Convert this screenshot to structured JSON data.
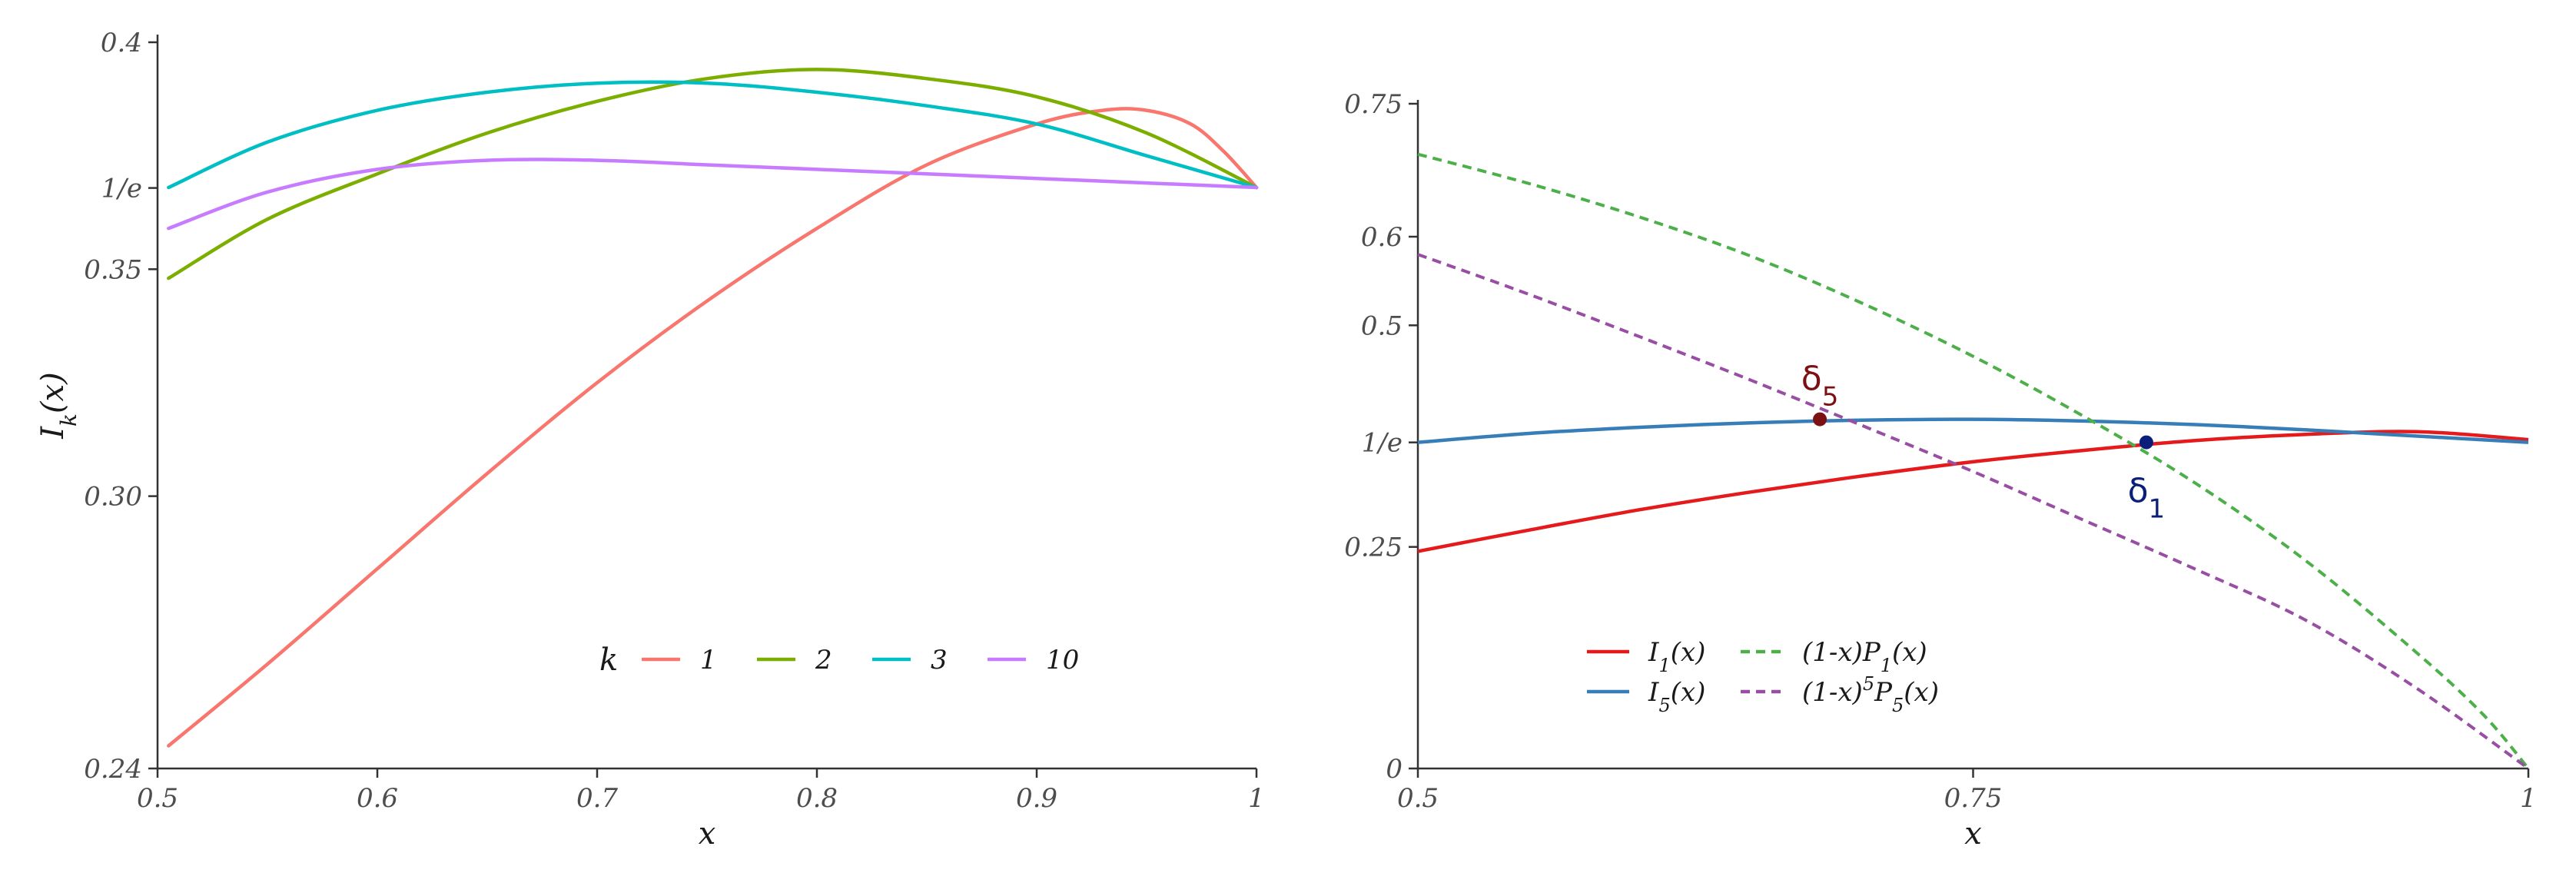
{
  "chart_data": [
    {
      "type": "line",
      "xlabel": "x",
      "ylabel": "I",
      "ylabel_sub": "k",
      "ylabel_suffix": "(x)",
      "xlim": [
        0.5,
        1.0
      ],
      "ylim": [
        0.24,
        0.4
      ],
      "x_ticks": [
        {
          "v": 0.5,
          "label": "0.5"
        },
        {
          "v": 0.6,
          "label": "0.6"
        },
        {
          "v": 0.7,
          "label": "0.7"
        },
        {
          "v": 0.8,
          "label": "0.8"
        },
        {
          "v": 0.9,
          "label": "0.9"
        },
        {
          "v": 1.0,
          "label": "1"
        }
      ],
      "y_ticks": [
        {
          "v": 0.24,
          "label": "0.24"
        },
        {
          "v": 0.3,
          "label": "0.30"
        },
        {
          "v": 0.35,
          "label": "0.35"
        },
        {
          "v": 0.3679,
          "label": "1/e"
        },
        {
          "v": 0.4,
          "label": "0.4"
        }
      ],
      "legend": {
        "title": "k",
        "placement": "bottom-center"
      },
      "series": [
        {
          "name": "1",
          "color": "#F8766D",
          "x": [
            0.505,
            0.55,
            0.6,
            0.65,
            0.7,
            0.75,
            0.8,
            0.85,
            0.9,
            0.93,
            0.95,
            0.97,
            0.985,
            1.0
          ],
          "y": [
            0.245,
            0.263,
            0.284,
            0.305,
            0.325,
            0.343,
            0.359,
            0.373,
            0.382,
            0.385,
            0.385,
            0.382,
            0.376,
            0.368
          ]
        },
        {
          "name": "2",
          "color": "#7CAE00",
          "x": [
            0.505,
            0.55,
            0.6,
            0.65,
            0.7,
            0.75,
            0.8,
            0.85,
            0.9,
            0.95,
            1.0
          ],
          "y": [
            0.348,
            0.361,
            0.371,
            0.38,
            0.387,
            0.392,
            0.394,
            0.392,
            0.388,
            0.38,
            0.368
          ]
        },
        {
          "name": "3",
          "color": "#00BFC4",
          "x": [
            0.505,
            0.55,
            0.6,
            0.65,
            0.7,
            0.75,
            0.8,
            0.85,
            0.9,
            0.95,
            1.0
          ],
          "y": [
            0.368,
            0.378,
            0.385,
            0.389,
            0.391,
            0.391,
            0.389,
            0.386,
            0.382,
            0.375,
            0.368
          ]
        },
        {
          "name": "10",
          "color": "#C77CFF",
          "x": [
            0.505,
            0.55,
            0.6,
            0.65,
            0.7,
            0.75,
            0.8,
            0.85,
            0.9,
            0.95,
            1.0
          ],
          "y": [
            0.359,
            0.367,
            0.372,
            0.374,
            0.374,
            0.373,
            0.372,
            0.371,
            0.37,
            0.369,
            0.368
          ]
        }
      ]
    },
    {
      "type": "line",
      "xlabel": "x",
      "xlim": [
        0.5,
        1.0
      ],
      "ylim": [
        0.0,
        0.75
      ],
      "x_ticks": [
        {
          "v": 0.5,
          "label": "0.5"
        },
        {
          "v": 0.75,
          "label": "0.75"
        },
        {
          "v": 1.0,
          "label": "1"
        }
      ],
      "y_ticks": [
        {
          "v": 0.0,
          "label": "0"
        },
        {
          "v": 0.25,
          "label": "0.25"
        },
        {
          "v": 0.3679,
          "label": "1/e"
        },
        {
          "v": 0.5,
          "label": "0.5"
        },
        {
          "v": 0.6,
          "label": "0.6"
        },
        {
          "v": 0.75,
          "label": "0.75"
        }
      ],
      "legend": {
        "placement": "bottom-left"
      },
      "series": [
        {
          "name": "I",
          "sub": "1",
          "suffix": "(x)",
          "color": "#E41A1C",
          "dash": false,
          "x": [
            0.5,
            0.55,
            0.6,
            0.65,
            0.7,
            0.75,
            0.8,
            0.85,
            0.9,
            0.95,
            1.0
          ],
          "y": [
            0.245,
            0.269,
            0.292,
            0.312,
            0.33,
            0.346,
            0.359,
            0.37,
            0.377,
            0.38,
            0.371
          ]
        },
        {
          "name": "I",
          "sub": "5",
          "suffix": "(x)",
          "color": "#377EB8",
          "dash": false,
          "x": [
            0.5,
            0.55,
            0.6,
            0.65,
            0.7,
            0.75,
            0.8,
            0.85,
            0.9,
            0.95,
            1.0
          ],
          "y": [
            0.368,
            0.378,
            0.385,
            0.39,
            0.393,
            0.394,
            0.392,
            0.388,
            0.382,
            0.375,
            0.368
          ]
        },
        {
          "name": "(1-x)P",
          "sub": "1",
          "suffix": "(x)",
          "color": "#4DAF4A",
          "dash": true,
          "x": [
            0.5,
            0.55,
            0.6,
            0.65,
            0.7,
            0.75,
            0.8,
            0.85,
            0.9,
            0.95,
            0.98,
            1.0
          ],
          "y": [
            0.693,
            0.66,
            0.622,
            0.578,
            0.525,
            0.465,
            0.397,
            0.322,
            0.234,
            0.13,
            0.06,
            0.0
          ]
        },
        {
          "name": "(1-x)",
          "sup": "5",
          "name2": "P",
          "sub": "5",
          "suffix": "(x)",
          "color": "#984EA3",
          "dash": true,
          "x": [
            0.5,
            0.55,
            0.6,
            0.65,
            0.7,
            0.75,
            0.8,
            0.85,
            0.9,
            0.95,
            1.0
          ],
          "y": [
            0.58,
            0.535,
            0.487,
            0.438,
            0.387,
            0.335,
            0.28,
            0.225,
            0.167,
            0.09,
            0.0
          ]
        }
      ],
      "points": [
        {
          "label": "δ",
          "sub": "5",
          "x": 0.681,
          "y": 0.394,
          "color": "#7B1113",
          "label_pos": "above"
        },
        {
          "label": "δ",
          "sub": "1",
          "x": 0.828,
          "y": 0.368,
          "color": "#0B1F7A",
          "label_pos": "below"
        }
      ]
    }
  ]
}
